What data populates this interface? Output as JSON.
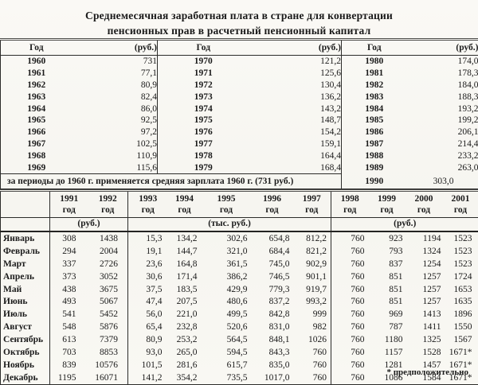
{
  "page": {
    "title_line1": "Среднемесячная заработная плата в стране для конвертации",
    "title_line2": "пенсионных прав в расчетный пенсионный капитал"
  },
  "top_table": {
    "year_header": "Год",
    "unit_header": "(руб.)",
    "groups": [
      {
        "rows": [
          [
            "1960",
            "731"
          ],
          [
            "1961",
            "77,1"
          ],
          [
            "1962",
            "80,9"
          ],
          [
            "1963",
            "82,4"
          ],
          [
            "1964",
            "86,0"
          ],
          [
            "1965",
            "92,5"
          ],
          [
            "1966",
            "97,2"
          ],
          [
            "1967",
            "102,5"
          ],
          [
            "1968",
            "110,9"
          ],
          [
            "1969",
            "115,6"
          ]
        ]
      },
      {
        "rows": [
          [
            "1970",
            "121,2"
          ],
          [
            "1971",
            "125,6"
          ],
          [
            "1972",
            "130,4"
          ],
          [
            "1973",
            "136,2"
          ],
          [
            "1974",
            "143,2"
          ],
          [
            "1975",
            "148,7"
          ],
          [
            "1976",
            "154,2"
          ],
          [
            "1977",
            "159,1"
          ],
          [
            "1978",
            "164,4"
          ],
          [
            "1979",
            "168,4"
          ]
        ]
      },
      {
        "rows": [
          [
            "1980",
            "174,0"
          ],
          [
            "1981",
            "178,3"
          ],
          [
            "1982",
            "184,0"
          ],
          [
            "1983",
            "188,3"
          ],
          [
            "1984",
            "193,2"
          ],
          [
            "1985",
            "199,2"
          ],
          [
            "1986",
            "206,1"
          ],
          [
            "1987",
            "214,4"
          ],
          [
            "1988",
            "233,2"
          ],
          [
            "1989",
            "263,0"
          ],
          [
            "1990",
            "303,0"
          ]
        ]
      }
    ],
    "note": "за периоды до 1960 г. применяется средняя зарплата 1960 г. (731 руб.)"
  },
  "bottom_table": {
    "years": [
      "1991",
      "1992",
      "1993",
      "1994",
      "1995",
      "1996",
      "1997",
      "1998",
      "1999",
      "2000",
      "2001"
    ],
    "year_suffix": "год",
    "unit_groups": [
      {
        "label": "(руб.)",
        "span": 2
      },
      {
        "label": "(тыс. руб.)",
        "span": 5
      },
      {
        "label": "(руб.)",
        "span": 4
      }
    ],
    "rows": [
      {
        "month": "Январь",
        "values": [
          "308",
          "1438",
          "15,3",
          "134,2",
          "302,6",
          "654,8",
          "812,2",
          "760",
          "923",
          "1194",
          "1523"
        ]
      },
      {
        "month": "Февраль",
        "values": [
          "294",
          "2004",
          "19,1",
          "144,7",
          "321,0",
          "684,4",
          "821,2",
          "760",
          "793",
          "1324",
          "1523"
        ]
      },
      {
        "month": "Март",
        "values": [
          "337",
          "2726",
          "23,6",
          "164,8",
          "361,5",
          "745,0",
          "902,9",
          "760",
          "837",
          "1254",
          "1523"
        ]
      },
      {
        "month": "Апрель",
        "values": [
          "373",
          "3052",
          "30,6",
          "171,4",
          "386,2",
          "746,5",
          "901,1",
          "760",
          "851",
          "1257",
          "1724"
        ]
      },
      {
        "month": "Май",
        "values": [
          "438",
          "3675",
          "37,5",
          "183,5",
          "429,9",
          "779,3",
          "919,7",
          "760",
          "851",
          "1257",
          "1653"
        ]
      },
      {
        "month": "Июнь",
        "values": [
          "493",
          "5067",
          "47,4",
          "207,5",
          "480,6",
          "837,2",
          "993,2",
          "760",
          "851",
          "1257",
          "1635"
        ]
      },
      {
        "month": "Июль",
        "values": [
          "541",
          "5452",
          "56,0",
          "221,0",
          "499,5",
          "842,8",
          "999",
          "760",
          "969",
          "1413",
          "1896"
        ]
      },
      {
        "month": "Август",
        "values": [
          "548",
          "5876",
          "65,4",
          "232,8",
          "520,6",
          "831,0",
          "982",
          "760",
          "787",
          "1411",
          "1550"
        ]
      },
      {
        "month": "Сентябрь",
        "values": [
          "613",
          "7379",
          "80,9",
          "253,2",
          "564,5",
          "848,1",
          "1026",
          "760",
          "1180",
          "1325",
          "1567"
        ]
      },
      {
        "month": "Октябрь",
        "values": [
          "703",
          "8853",
          "93,0",
          "265,0",
          "594,5",
          "843,3",
          "760",
          "760",
          "1157",
          "1528",
          "1671*"
        ]
      },
      {
        "month": "Ноябрь",
        "values": [
          "839",
          "10576",
          "101,5",
          "281,6",
          "615,7",
          "835,0",
          "760",
          "760",
          "1281",
          "1457",
          "1671*"
        ]
      },
      {
        "month": "Декабрь",
        "values": [
          "1195",
          "16071",
          "141,2",
          "354,2",
          "735,5",
          "1017,0",
          "760",
          "760",
          "1086",
          "1584",
          "1671*"
        ]
      }
    ],
    "footnote": "* предположительно"
  }
}
